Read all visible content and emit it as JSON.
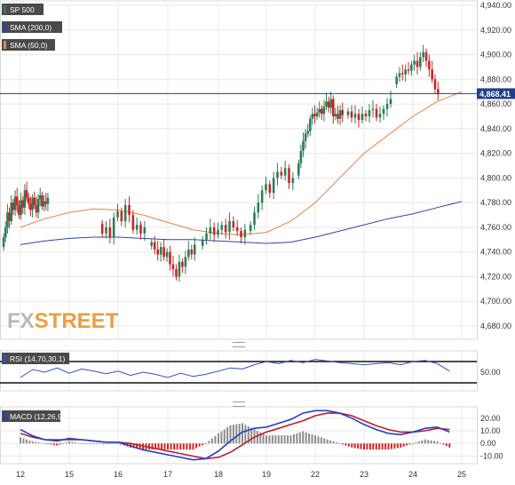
{
  "colors": {
    "bull": "#2e7d55",
    "bear": "#c62828",
    "sma200": "#2a47a8",
    "sma50": "#e8833a",
    "rsi": "#3050c8",
    "macd": "#2040c8",
    "signal": "#c01e2a",
    "hist_pos": "#8c8c8c",
    "hist_neg": "#e02020",
    "price_line": "#1e3f8a",
    "grid": "#e8e8e8",
    "legend_bg": "#4a4a4a"
  },
  "legend": {
    "price": "SP 500",
    "sma200": "SMA (200,0)",
    "sma50": "SMA (50,0)"
  },
  "rsi_panel": {
    "label": "RSI (14,70,30,1)"
  },
  "macd_panel": {
    "label": "MACD (12,26,9)"
  },
  "watermark": {
    "fx": "FX",
    "street": "STREET"
  },
  "chart_data": [
    {
      "type": "candlestick",
      "title": "",
      "x_ticks": [
        "12",
        "15",
        "16",
        "17",
        "18",
        "19",
        "22",
        "23",
        "24",
        "25"
      ],
      "y_ticks": [
        "4,940.00",
        "4,920.00",
        "4,900.00",
        "4,880.00",
        "4,860.00",
        "4,840.00",
        "4,820.00",
        "4,800.00",
        "4,780.00",
        "4,760.00",
        "4,740.00",
        "4,720.00",
        "4,700.00",
        "4,680.00"
      ],
      "ylim": [
        4670,
        4945
      ],
      "current_price": {
        "value": 4868.41,
        "label": "4,868.41"
      },
      "segments": [
        {
          "day": 0,
          "start": 4744,
          "closes": [
            4752,
            4760,
            4772,
            4765,
            4780,
            4774,
            4785,
            4778,
            4770,
            4782,
            4776,
            4790,
            4784,
            4779,
            4774,
            4784,
            4778,
            4772,
            4783,
            4786,
            4777,
            4781,
            4779,
            4784
          ]
        },
        {
          "day": 2,
          "start": 4763,
          "closes": [
            4755,
            4760,
            4752,
            4768,
            4773,
            4765,
            4778,
            4770,
            4758,
            4762,
            4755,
            4760
          ]
        },
        {
          "day": 3,
          "start": 4745,
          "closes": [
            4748,
            4742,
            4738,
            4744,
            4736,
            4740,
            4730,
            4726,
            4720,
            4732,
            4728,
            4736,
            4742,
            4738,
            4746
          ]
        },
        {
          "day": 4,
          "start": 4745,
          "closes": [
            4750,
            4755,
            4760,
            4754,
            4758,
            4762,
            4756,
            4765,
            4760,
            4757,
            4752,
            4758
          ]
        },
        {
          "day": 5,
          "start": 4757,
          "closes": [
            4762,
            4772,
            4780,
            4790,
            4795,
            4788,
            4800,
            4805,
            4802,
            4808,
            4796,
            4800
          ]
        },
        {
          "day": 6,
          "start": 4802,
          "closes": [
            4812,
            4822,
            4830,
            4836,
            4838,
            4848,
            4852,
            4850,
            4853,
            4856,
            4852,
            4858,
            4862,
            4857,
            4864,
            4850,
            4852,
            4848,
            4855,
            4851
          ]
        },
        {
          "day": 7,
          "start": 4851,
          "closes": [
            4854,
            4849,
            4852,
            4847,
            4852,
            4850,
            4855,
            4856,
            4849,
            4852,
            4856,
            4860,
            4864
          ]
        },
        {
          "day": 8,
          "start": 4876,
          "closes": [
            4882,
            4885,
            4884,
            4888,
            4887,
            4892,
            4895,
            4890,
            4898,
            4902,
            4895,
            4888,
            4880,
            4872,
            4868
          ]
        }
      ],
      "series": [
        {
          "name": "SMA (200,0)",
          "x": [
            0,
            0.5,
            1,
            1.5,
            2,
            2.5,
            3,
            3.5,
            4,
            4.5,
            5,
            5.5,
            6,
            6.5,
            7,
            7.5,
            8,
            8.5,
            9
          ],
          "values": [
            4746,
            4749,
            4751,
            4752,
            4752,
            4751,
            4750,
            4750,
            4749,
            4748,
            4747,
            4748,
            4752,
            4757,
            4762,
            4767,
            4771,
            4776,
            4781
          ]
        },
        {
          "name": "SMA (50,0)",
          "x": [
            0,
            0.5,
            1,
            1.5,
            2,
            2.5,
            3,
            3.5,
            4,
            4.5,
            5,
            5.5,
            6,
            6.5,
            7,
            7.5,
            8,
            8.5,
            9
          ],
          "values": [
            4760,
            4767,
            4772,
            4775,
            4774,
            4770,
            4764,
            4758,
            4755,
            4754,
            4756,
            4765,
            4780,
            4800,
            4820,
            4835,
            4850,
            4862,
            4870
          ]
        }
      ]
    },
    {
      "type": "line",
      "title": "RSI (14,70,30,1)",
      "y_ticks": [
        "50.00"
      ],
      "ylim": [
        15,
        90
      ],
      "levels": [
        70,
        30
      ],
      "series": [
        {
          "name": "RSI",
          "x": [
            0,
            0.25,
            0.5,
            0.75,
            1,
            1.25,
            1.5,
            1.75,
            2,
            2.25,
            2.5,
            2.75,
            3,
            3.25,
            3.5,
            3.75,
            4,
            4.25,
            4.5,
            4.75,
            5,
            5.25,
            5.5,
            5.75,
            6,
            6.25,
            6.5,
            6.75,
            7,
            7.25,
            7.5,
            7.75,
            8,
            8.25,
            8.5,
            8.75
          ],
          "values": [
            40,
            55,
            50,
            58,
            48,
            56,
            52,
            47,
            52,
            44,
            50,
            46,
            40,
            48,
            42,
            46,
            52,
            58,
            56,
            64,
            70,
            66,
            72,
            68,
            74,
            71,
            68,
            66,
            64,
            66,
            68,
            64,
            70,
            72,
            66,
            52
          ]
        }
      ]
    },
    {
      "type": "line",
      "title": "MACD (12,26,9)",
      "y_ticks": [
        "20.00",
        "10.00",
        "0.00",
        "-10.00"
      ],
      "ylim": [
        -16,
        29
      ],
      "series": [
        {
          "name": "MACD",
          "x": [
            0,
            0.25,
            0.5,
            0.75,
            1,
            1.25,
            1.5,
            1.75,
            2,
            2.25,
            2.5,
            2.75,
            3,
            3.25,
            3.5,
            3.75,
            4,
            4.25,
            4.5,
            4.75,
            5,
            5.25,
            5.5,
            5.75,
            6,
            6.25,
            6.5,
            6.75,
            7,
            7.25,
            7.5,
            7.75,
            8,
            8.25,
            8.5,
            8.75
          ],
          "values": [
            11,
            6,
            3,
            2,
            4,
            3,
            2,
            1,
            1,
            -2,
            -5,
            -7,
            -9,
            -11,
            -13,
            -12,
            -6,
            2,
            9,
            12,
            13,
            16,
            19,
            24,
            26,
            26,
            24,
            20,
            15,
            11,
            8,
            7,
            9,
            12,
            13,
            9
          ]
        },
        {
          "name": "Signal",
          "x": [
            0,
            0.25,
            0.5,
            0.75,
            1,
            1.25,
            1.5,
            1.75,
            2,
            2.25,
            2.5,
            2.75,
            3,
            3.25,
            3.5,
            3.75,
            4,
            4.25,
            4.5,
            4.75,
            5,
            5.25,
            5.5,
            5.75,
            6,
            6.25,
            6.5,
            6.75,
            7,
            7.25,
            7.5,
            7.75,
            8,
            8.25,
            8.5,
            8.75
          ],
          "values": [
            8,
            5,
            3,
            3,
            3,
            3,
            2,
            1,
            1,
            0,
            -2,
            -4,
            -6,
            -8,
            -10,
            -12,
            -11,
            -7,
            -1,
            5,
            9,
            12,
            15,
            18,
            22,
            24,
            24,
            22,
            18,
            14,
            11,
            9,
            9,
            10,
            12,
            11
          ]
        }
      ]
    }
  ]
}
